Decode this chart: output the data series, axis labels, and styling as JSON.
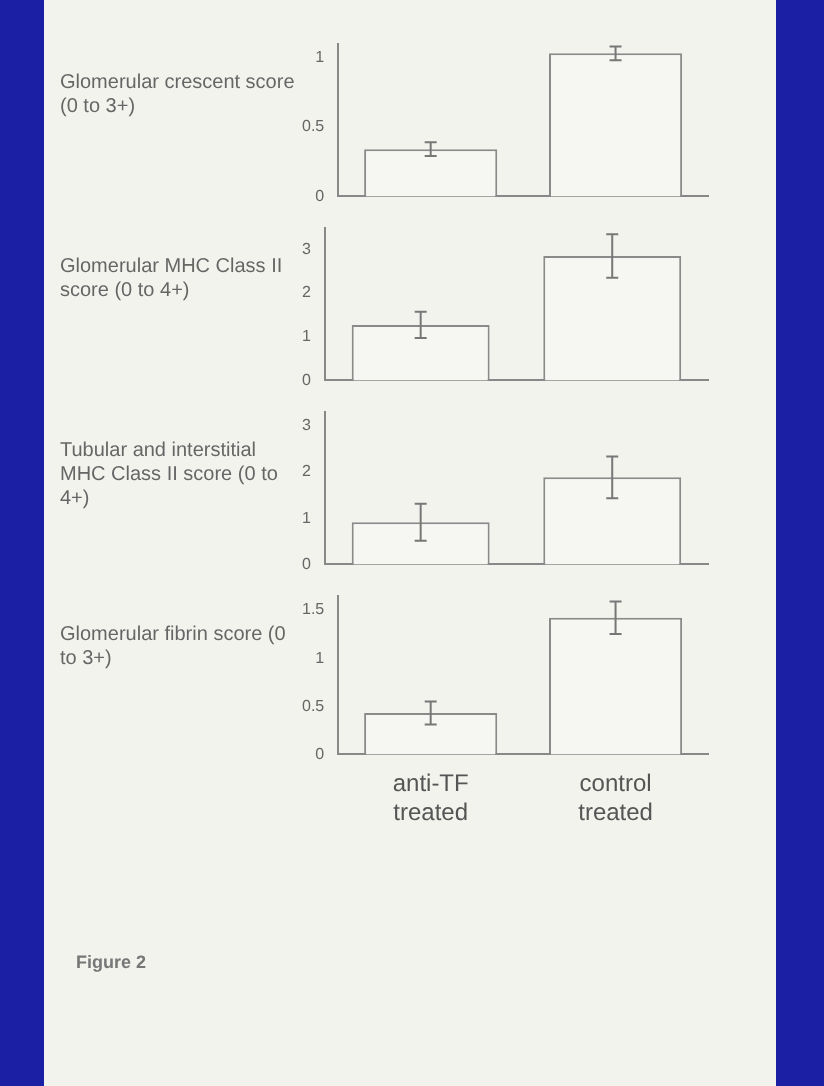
{
  "chart_data": [
    {
      "type": "bar",
      "ylabel": "Glomerular crescent score (0 to 3+)",
      "categories": [
        null,
        null
      ],
      "values": [
        0.34,
        1.03
      ],
      "errors": [
        0.05,
        0.05
      ],
      "color": "#f6f6f2",
      "ylim": [
        0,
        1.1
      ],
      "yticks": [
        0,
        0.5,
        1
      ],
      "grid": false,
      "legend": false,
      "tick_labels": "y"
    },
    {
      "type": "bar",
      "ylabel": "Glomerular MHC Class II score (0 to 4+)",
      "categories": [
        null,
        null
      ],
      "values": [
        1.27,
        2.85
      ],
      "errors": [
        0.3,
        0.5
      ],
      "color": "#f6f6f2",
      "ylim": [
        0,
        3.5
      ],
      "yticks": [
        0,
        1,
        2,
        3
      ],
      "grid": false,
      "legend": false,
      "tick_labels": "y"
    },
    {
      "type": "bar",
      "ylabel": "Tubular and interstitial MHC Class II score (0 to 4+)",
      "categories": [
        null,
        null
      ],
      "values": [
        0.91,
        1.88
      ],
      "errors": [
        0.4,
        0.45
      ],
      "color": "#f6f6f2",
      "ylim": [
        0,
        3.3
      ],
      "yticks": [
        0,
        1,
        2,
        3
      ],
      "grid": false,
      "legend": false,
      "tick_labels": "y"
    },
    {
      "type": "bar",
      "ylabel": "Glomerular fibrin score (0 to 3+)",
      "categories": [
        "anti-TF treated",
        "control treated"
      ],
      "values": [
        0.43,
        1.42
      ],
      "errors": [
        0.12,
        0.17
      ],
      "color": "#f6f6f2",
      "ylim": [
        0,
        1.65
      ],
      "yticks": [
        0,
        0.5,
        1,
        1.5
      ],
      "grid": false,
      "legend": false,
      "annotations": [
        "Figure 2"
      ]
    }
  ]
}
